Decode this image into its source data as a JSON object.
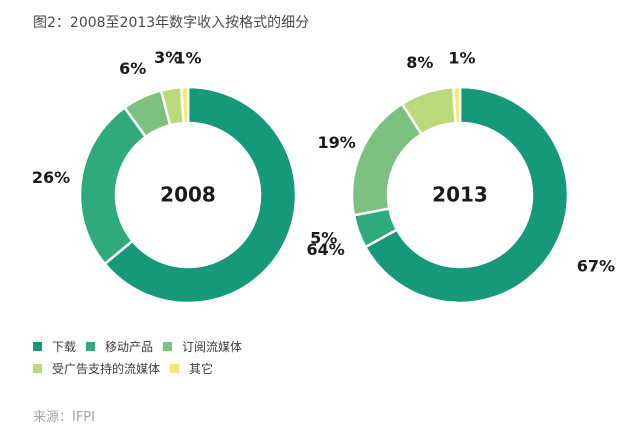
{
  "title": "图2：2008至2013年数字收入按格式的细分",
  "source": "来源：IFPI",
  "legend": [
    {
      "label": "下载",
      "color": "#15997a"
    },
    {
      "label": "移动产品",
      "color": "#2faa7d"
    },
    {
      "label": "订阅流媒体",
      "color": "#7cc17f"
    },
    {
      "label": "受广告支持的流媒体",
      "color": "#b9d97a"
    },
    {
      "label": "其它",
      "color": "#f1ea6e"
    }
  ],
  "chart_data": [
    {
      "type": "pie",
      "center_label": "2008",
      "categories": [
        "下载",
        "移动产品",
        "订阅流媒体",
        "受广告支持的流媒体",
        "其它"
      ],
      "values": [
        64,
        26,
        6,
        3,
        1
      ],
      "labels": [
        "64%",
        "26%",
        "6%",
        "3%",
        "1%"
      ],
      "colors": [
        "#15997a",
        "#2faa7d",
        "#7cc17f",
        "#b9d97a",
        "#f1ea6e"
      ]
    },
    {
      "type": "pie",
      "center_label": "2013",
      "categories": [
        "下载",
        "移动产品",
        "订阅流媒体",
        "受广告支持的流媒体",
        "其它"
      ],
      "values": [
        67,
        5,
        19,
        8,
        1
      ],
      "labels": [
        "67%",
        "5%",
        "19%",
        "8%",
        "1%"
      ],
      "colors": [
        "#15997a",
        "#2faa7d",
        "#7cc17f",
        "#b9d97a",
        "#f1ea6e"
      ]
    }
  ]
}
